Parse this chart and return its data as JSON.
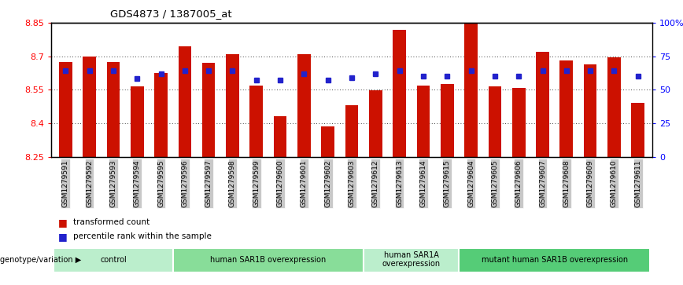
{
  "title": "GDS4873 / 1387005_at",
  "samples": [
    "GSM1279591",
    "GSM1279592",
    "GSM1279593",
    "GSM1279594",
    "GSM1279595",
    "GSM1279596",
    "GSM1279597",
    "GSM1279598",
    "GSM1279599",
    "GSM1279600",
    "GSM1279601",
    "GSM1279602",
    "GSM1279603",
    "GSM1279612",
    "GSM1279613",
    "GSM1279614",
    "GSM1279615",
    "GSM1279604",
    "GSM1279605",
    "GSM1279606",
    "GSM1279607",
    "GSM1279608",
    "GSM1279609",
    "GSM1279610",
    "GSM1279611"
  ],
  "bar_values": [
    8.675,
    8.7,
    8.675,
    8.565,
    8.625,
    8.745,
    8.67,
    8.71,
    8.57,
    8.43,
    8.71,
    8.385,
    8.48,
    8.548,
    8.82,
    8.57,
    8.575,
    8.885,
    8.565,
    8.56,
    8.72,
    8.68,
    8.665,
    8.695,
    8.49
  ],
  "percentile_values": [
    8.635,
    8.635,
    8.635,
    8.6,
    8.62,
    8.635,
    8.635,
    8.635,
    8.595,
    8.595,
    8.62,
    8.595,
    8.605,
    8.62,
    8.635,
    8.61,
    8.61,
    8.635,
    8.61,
    8.61,
    8.635,
    8.635,
    8.635,
    8.635,
    8.61
  ],
  "ylim_left": [
    8.25,
    8.85
  ],
  "ylim_right": [
    0,
    100
  ],
  "yticks_left": [
    8.25,
    8.4,
    8.55,
    8.7,
    8.85
  ],
  "ytick_labels_left": [
    "8.25",
    "8.4",
    "8.55",
    "8.7",
    "8.85"
  ],
  "yticks_right": [
    0,
    25,
    50,
    75,
    100
  ],
  "ytick_labels_right": [
    "0",
    "25",
    "50",
    "75",
    "100%"
  ],
  "bar_color": "#cc1100",
  "dot_color": "#2222cc",
  "bar_bottom": 8.25,
  "groups": [
    {
      "label": "control",
      "start": 0,
      "end": 5,
      "color": "#bbeecc"
    },
    {
      "label": "human SAR1B overexpression",
      "start": 5,
      "end": 13,
      "color": "#88dd99"
    },
    {
      "label": "human SAR1A\noverexpression",
      "start": 13,
      "end": 17,
      "color": "#bbeecc"
    },
    {
      "label": "mutant human SAR1B overexpression",
      "start": 17,
      "end": 25,
      "color": "#55cc77"
    }
  ],
  "legend_label_bar": "transformed count",
  "legend_label_dot": "percentile rank within the sample",
  "genotype_label": "genotype/variation",
  "bg_color": "#ffffff",
  "plot_bg": "#ffffff",
  "tick_bg_color": "#c8c8c8"
}
